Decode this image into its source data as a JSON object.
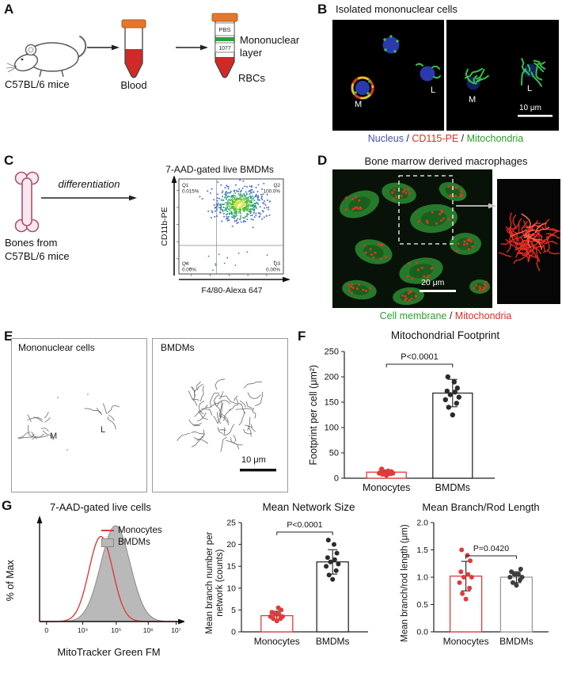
{
  "panels": {
    "A": {
      "tag": "A",
      "mouse_caption": "C57BL/6 mice",
      "tube1_caption": "Blood",
      "tube2_pbs": "PBS",
      "tube2_density": "1077",
      "mononuclear_line1": "Mononuclear",
      "mononuclear_line2": "layer",
      "rbc_label": "RBCs"
    },
    "B": {
      "tag": "B",
      "title": "Isolated mononuclear cells",
      "monocyte_label": "M",
      "lymphocyte_label": "L",
      "scale_bar": "10 μm",
      "legend_parts": [
        {
          "text": "Nucleus",
          "color": "#4450b4"
        },
        {
          "text": " / ",
          "color": "#222222"
        },
        {
          "text": "CD115-PE",
          "color": "#d93025"
        },
        {
          "text": " / ",
          "color": "#222222"
        },
        {
          "text": "Mitochondria",
          "color": "#2ba02b"
        }
      ]
    },
    "C": {
      "tag": "C",
      "differentiation_label": "differentiation",
      "source_line1": "Bones from",
      "source_line2": "C57BL/6 mice"
    },
    "D": {
      "tag": "D",
      "title": "Bone marrow derived macrophages",
      "scale_bar": "20 μm",
      "legend_parts": [
        {
          "text": "Cell membrane",
          "color": "#2ba02b"
        },
        {
          "text": " / ",
          "color": "#222222"
        },
        {
          "text": "Mitochondria",
          "color": "#d93025"
        }
      ]
    },
    "E": {
      "tag": "E",
      "left_title": "Mononuclear cells",
      "right_title": "BMDMs",
      "labels": {
        "m": "M",
        "l": "L"
      },
      "scale_bar": "10 μm"
    },
    "F": {
      "tag": "F"
    },
    "G": {
      "tag": "G"
    }
  },
  "chart_data": [
    {
      "id": "flow_bmdm",
      "type": "scatter",
      "title": "7-AAD-gated live BMDMs",
      "xlabel": "F4/80-Alexa 647",
      "ylabel": "CD11b-PE",
      "quadrants": [
        {
          "name": "Q1",
          "value": "0.015%"
        },
        {
          "name": "Q2",
          "value": "100.0%"
        },
        {
          "name": "Q3",
          "value": "0.00%"
        },
        {
          "name": "Q4",
          "value": "0.00%"
        }
      ],
      "population": {
        "center_x_frac": 0.58,
        "center_y_frac": 0.27,
        "spread_x_frac": 0.115,
        "spread_y_frac": 0.09,
        "n": 520
      }
    },
    {
      "id": "mito_footprint",
      "type": "bar_scatter",
      "title": "Mitochondrial Footprint",
      "ylabel": "Footprint per cell (μm²)",
      "ylim": [
        0,
        250
      ],
      "yticks": [
        "0",
        "50",
        "100",
        "150",
        "200",
        "250"
      ],
      "p_value": "P<0.0001",
      "categories": [
        "Monocytes",
        "BMDMs"
      ],
      "series": [
        {
          "name": "Monocytes",
          "color": "#e03b3b",
          "bar_color": "#e03b3b",
          "bar_mean": 12,
          "sd": 4,
          "points": [
            6,
            8,
            9,
            10,
            10,
            11,
            12,
            12,
            13,
            14,
            18
          ]
        },
        {
          "name": "BMDMs",
          "color": "#2b2b2b",
          "bar_color": "#2b2b2b",
          "bar_mean": 168,
          "sd": 27,
          "points": [
            125,
            140,
            148,
            155,
            160,
            165,
            170,
            172,
            178,
            190,
            200
          ]
        }
      ]
    },
    {
      "id": "mitotracker_histogram",
      "type": "histogram",
      "title": "7-AAD-gated live cells",
      "xlabel": "MitoTracker Green FM",
      "ylabel": "% of Max",
      "xticks": [
        "0",
        "10⁴",
        "10⁵",
        "10⁶",
        "10⁷"
      ],
      "series": [
        {
          "name": "Monocytes",
          "color": "#e03b3b",
          "style": "line",
          "peak_frac": 0.44,
          "sigma_frac": 0.085,
          "height_frac": 0.86
        },
        {
          "name": "BMDMs",
          "color": "#b9b9b9",
          "style": "filled",
          "peak_frac": 0.545,
          "sigma_frac": 0.105,
          "height_frac": 0.97
        }
      ]
    },
    {
      "id": "mean_network_size",
      "type": "bar_scatter",
      "title": "Mean Network Size",
      "ylabel": "Mean branch number per network (counts)",
      "ylim": [
        0,
        25
      ],
      "yticks": [
        "0",
        "5",
        "10",
        "15",
        "20",
        "25"
      ],
      "p_value": "P<0.0001",
      "categories": [
        "Monocytes",
        "BMDMs"
      ],
      "series": [
        {
          "name": "Monocytes",
          "color": "#e03b3b",
          "bar_color": "#e03b3b",
          "bar_mean": 3.7,
          "sd": 1,
          "points": [
            2.5,
            3,
            3,
            3.5,
            3.5,
            4,
            4,
            4.5,
            5,
            5.5
          ]
        },
        {
          "name": "BMDMs",
          "color": "#2b2b2b",
          "bar_color": "#2b2b2b",
          "bar_mean": 16,
          "sd": 2.8,
          "points": [
            12,
            13,
            14,
            15,
            15.5,
            16,
            16.5,
            17,
            18,
            20,
            21
          ]
        }
      ]
    },
    {
      "id": "mean_branch_length",
      "type": "bar_scatter",
      "title": "Mean Branch/Rod Length",
      "ylabel": "Mean branch/rod length (μm)",
      "ylim": [
        0,
        2
      ],
      "yticks": [
        "0.0",
        "0.5",
        "1.0",
        "1.5",
        "2.0"
      ],
      "p_value": "P=0.0420",
      "categories": [
        "Monocytes",
        "BMDMs"
      ],
      "series": [
        {
          "name": "Monocytes",
          "color": "#e03b3b",
          "bar_color": "#e03b3b",
          "bar_mean": 1.02,
          "sd": 0.27,
          "points": [
            0.6,
            0.7,
            0.8,
            0.9,
            1.0,
            1.0,
            1.05,
            1.1,
            1.3,
            1.4,
            1.5
          ]
        },
        {
          "name": "BMDMs",
          "color": "#3c3c3c",
          "bar_color": "#9a9a9a",
          "bar_mean": 1.0,
          "sd": 0.1,
          "points": [
            0.85,
            0.9,
            0.95,
            1.0,
            1.0,
            1.05,
            1.05,
            1.1,
            1.15
          ]
        }
      ]
    }
  ]
}
